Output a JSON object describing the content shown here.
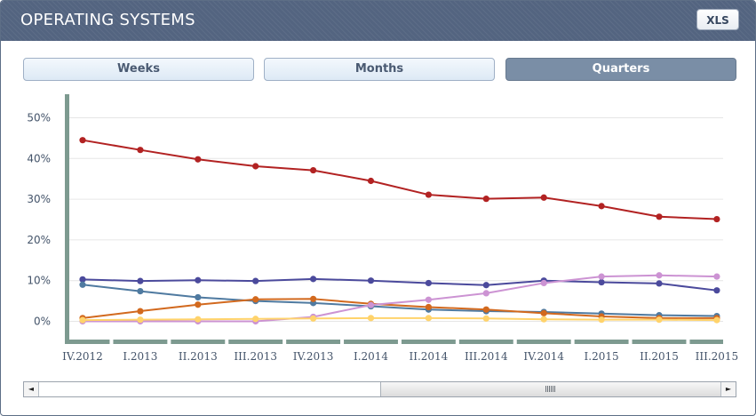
{
  "header": {
    "title": "OPERATING SYSTEMS",
    "export_label": "XLS"
  },
  "tabs": [
    {
      "label": "Weeks",
      "active": false
    },
    {
      "label": "Months",
      "active": false
    },
    {
      "label": "Quarters",
      "active": true
    }
  ],
  "colors": {
    "header_bg": "#536480",
    "active_tab": "#7a8ea6",
    "axis": "#7d9a90"
  },
  "chart_data": {
    "type": "line",
    "title": "",
    "xlabel": "",
    "ylabel": "",
    "ylim": [
      0,
      52
    ],
    "y_ticks": [
      0,
      10,
      20,
      30,
      40,
      50
    ],
    "y_tick_labels": [
      "0%",
      "10%",
      "20%",
      "30%",
      "40%",
      "50%"
    ],
    "grid": true,
    "legend": "none",
    "categories": [
      "IV.2012",
      "I.2013",
      "II.2013",
      "III.2013",
      "IV.2013",
      "I.2014",
      "II.2014",
      "III.2014",
      "IV.2014",
      "I.2015",
      "II.2015",
      "III.2015"
    ],
    "series": [
      {
        "color": "#b22222",
        "values": [
          44.5,
          42.1,
          39.8,
          38.1,
          37.1,
          34.5,
          31.1,
          30.1,
          30.4,
          28.3,
          25.7,
          25.1
        ]
      },
      {
        "color": "#4b4a9c",
        "values": [
          10.3,
          9.9,
          10.1,
          9.9,
          10.4,
          10.0,
          9.4,
          8.9,
          10.0,
          9.6,
          9.3,
          7.6
        ]
      },
      {
        "color": "#4f7aa0",
        "values": [
          9.0,
          7.4,
          5.9,
          5.0,
          4.5,
          3.7,
          2.9,
          2.5,
          2.3,
          1.9,
          1.5,
          1.3
        ]
      },
      {
        "color": "#d2691e",
        "values": [
          0.8,
          2.5,
          4.1,
          5.4,
          5.5,
          4.3,
          3.5,
          2.9,
          2.0,
          1.2,
          0.8,
          0.8
        ]
      },
      {
        "color": "#cc93d3",
        "values": [
          0.0,
          0.0,
          0.0,
          0.0,
          1.1,
          4.0,
          5.3,
          6.9,
          9.4,
          11.0,
          11.3,
          11.0
        ]
      },
      {
        "color": "#ffd36b",
        "values": [
          0.3,
          0.4,
          0.5,
          0.6,
          0.7,
          0.8,
          0.8,
          0.7,
          0.5,
          0.4,
          0.4,
          0.3
        ]
      }
    ]
  },
  "scrollbar": {
    "left_arrow": "◄",
    "right_arrow": "►"
  }
}
